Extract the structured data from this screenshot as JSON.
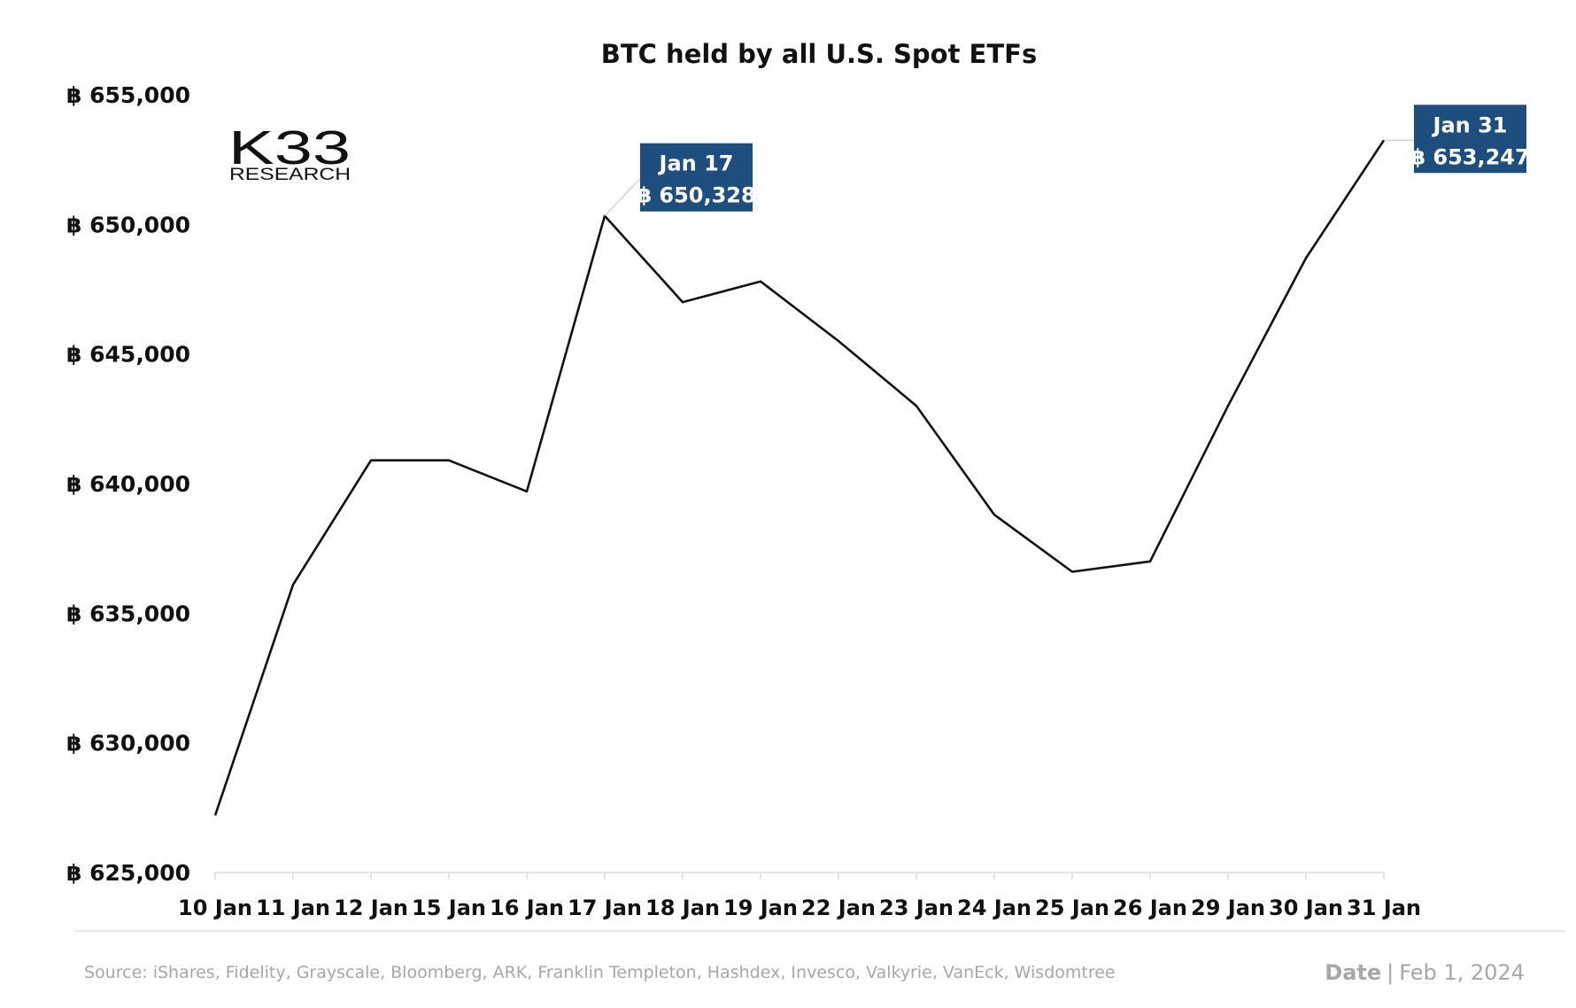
{
  "chart_data": {
    "type": "line",
    "title": "BTC held by all U.S. Spot ETFs",
    "xlabel": "",
    "ylabel": "",
    "categories": [
      "10 Jan",
      "11 Jan",
      "12 Jan",
      "15 Jan",
      "16 Jan",
      "17 Jan",
      "18 Jan",
      "19 Jan",
      "22 Jan",
      "23 Jan",
      "24 Jan",
      "25 Jan",
      "26 Jan",
      "29 Jan",
      "30 Jan",
      "31 Jan"
    ],
    "series": [
      {
        "values": [
          627200,
          636100,
          640900,
          640900,
          639700,
          650328,
          647000,
          647800,
          645500,
          643000,
          638800,
          636600,
          637000,
          643000,
          648700,
          653247
        ]
      }
    ],
    "ylim": [
      625000,
      655000
    ],
    "yticks": [
      625000,
      630000,
      635000,
      640000,
      645000,
      650000,
      655000
    ],
    "ytick_labels": [
      "฿ 625,000",
      "฿ 630,000",
      "฿ 635,000",
      "฿ 640,000",
      "฿ 645,000",
      "฿ 650,000",
      "฿ 655,000"
    ],
    "grid": false,
    "line_color": "#111111",
    "annotations": [
      {
        "index": 5,
        "date": "Jan 17",
        "value_text": "฿ 650,328"
      },
      {
        "index": 15,
        "date": "Jan 31",
        "value_text": "฿ 653,247"
      }
    ],
    "annotation_color": "#1d4e7e"
  },
  "logo": {
    "main": "K33",
    "sub": "RESEARCH"
  },
  "footer": {
    "source": "Source:  iShares, Fidelity, Grayscale, Bloomberg, ARK, Franklin Templeton, Hashdex, Invesco, Valkyrie, VanEck, Wisdomtree",
    "date_label": "Date",
    "date_sep": "|",
    "date_value": "Feb 1, 2024"
  }
}
